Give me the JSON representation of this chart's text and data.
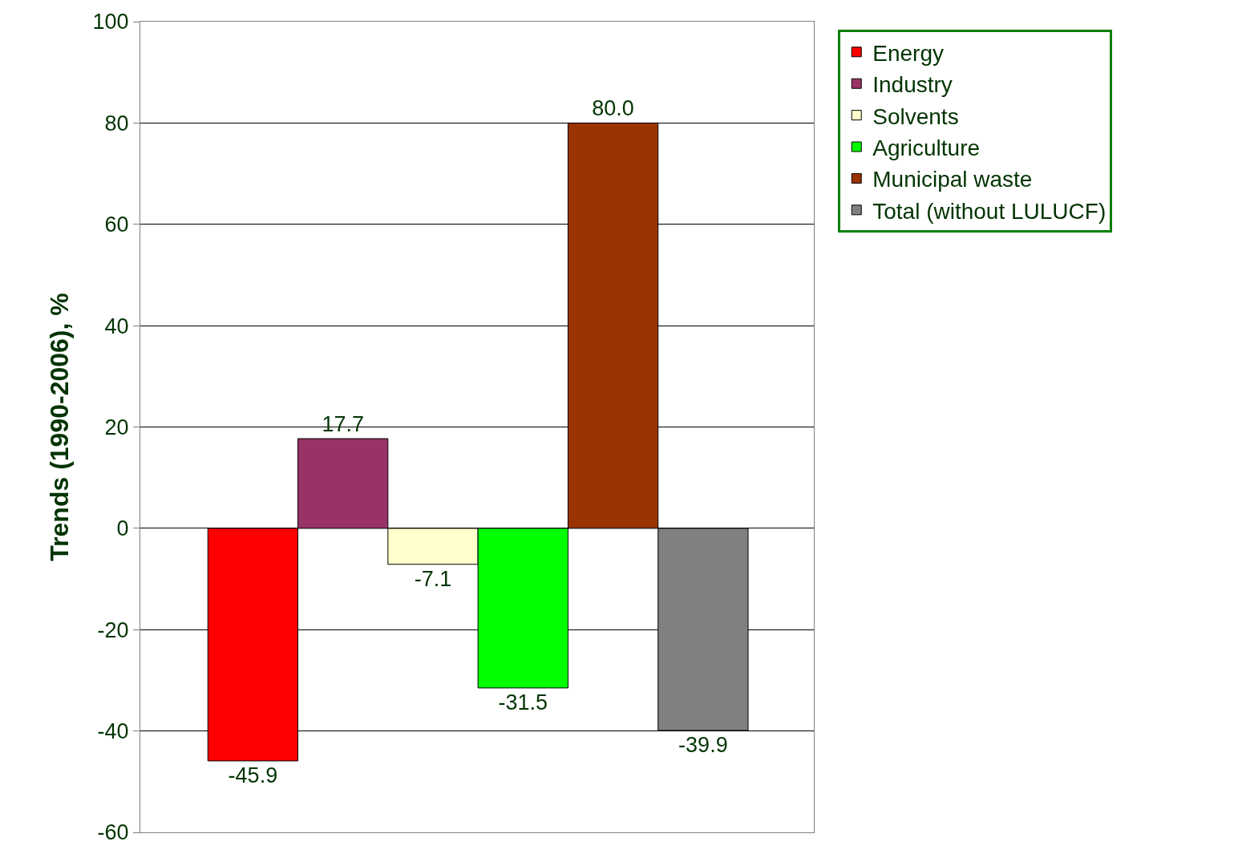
{
  "chart_data": {
    "type": "bar",
    "ylabel": "Trends (1990-2006), %",
    "categories": [
      null,
      null,
      null,
      null,
      null,
      null
    ],
    "series": [
      {
        "name": "Energy",
        "color": "#ff0000",
        "values": [
          -45.9,
          null,
          null,
          null,
          null,
          null
        ],
        "value_labels": [
          "-45.9",
          null,
          null,
          null,
          null,
          null
        ]
      },
      {
        "name": "Industry",
        "color": "#993366",
        "values": [
          null,
          17.7,
          null,
          null,
          null,
          null
        ],
        "value_labels": [
          null,
          "17.7",
          null,
          null,
          null,
          null
        ]
      },
      {
        "name": "Solvents",
        "color": "#ffffcc",
        "values": [
          null,
          null,
          -7.1,
          null,
          null,
          null
        ],
        "value_labels": [
          null,
          null,
          "-7.1",
          null,
          null,
          null
        ]
      },
      {
        "name": "Agriculture",
        "color": "#00ff00",
        "values": [
          null,
          null,
          null,
          -31.5,
          null,
          null
        ],
        "value_labels": [
          null,
          null,
          null,
          "-31.5",
          null,
          null
        ]
      },
      {
        "name": "Municipal waste",
        "color": "#993300",
        "values": [
          null,
          null,
          null,
          null,
          80.0,
          null
        ],
        "value_labels": [
          null,
          null,
          null,
          null,
          "80.0",
          null
        ]
      },
      {
        "name": "Total (without LULUCF)",
        "color": "#808080",
        "values": [
          null,
          null,
          null,
          null,
          null,
          -39.9
        ],
        "value_labels": [
          null,
          null,
          null,
          null,
          null,
          "-39.9"
        ]
      }
    ],
    "ylim": [
      -60,
      100
    ],
    "yticks": [
      -60,
      -40,
      -20,
      0,
      20,
      40,
      60,
      80,
      100
    ],
    "grid": "y",
    "legend": "top right"
  }
}
